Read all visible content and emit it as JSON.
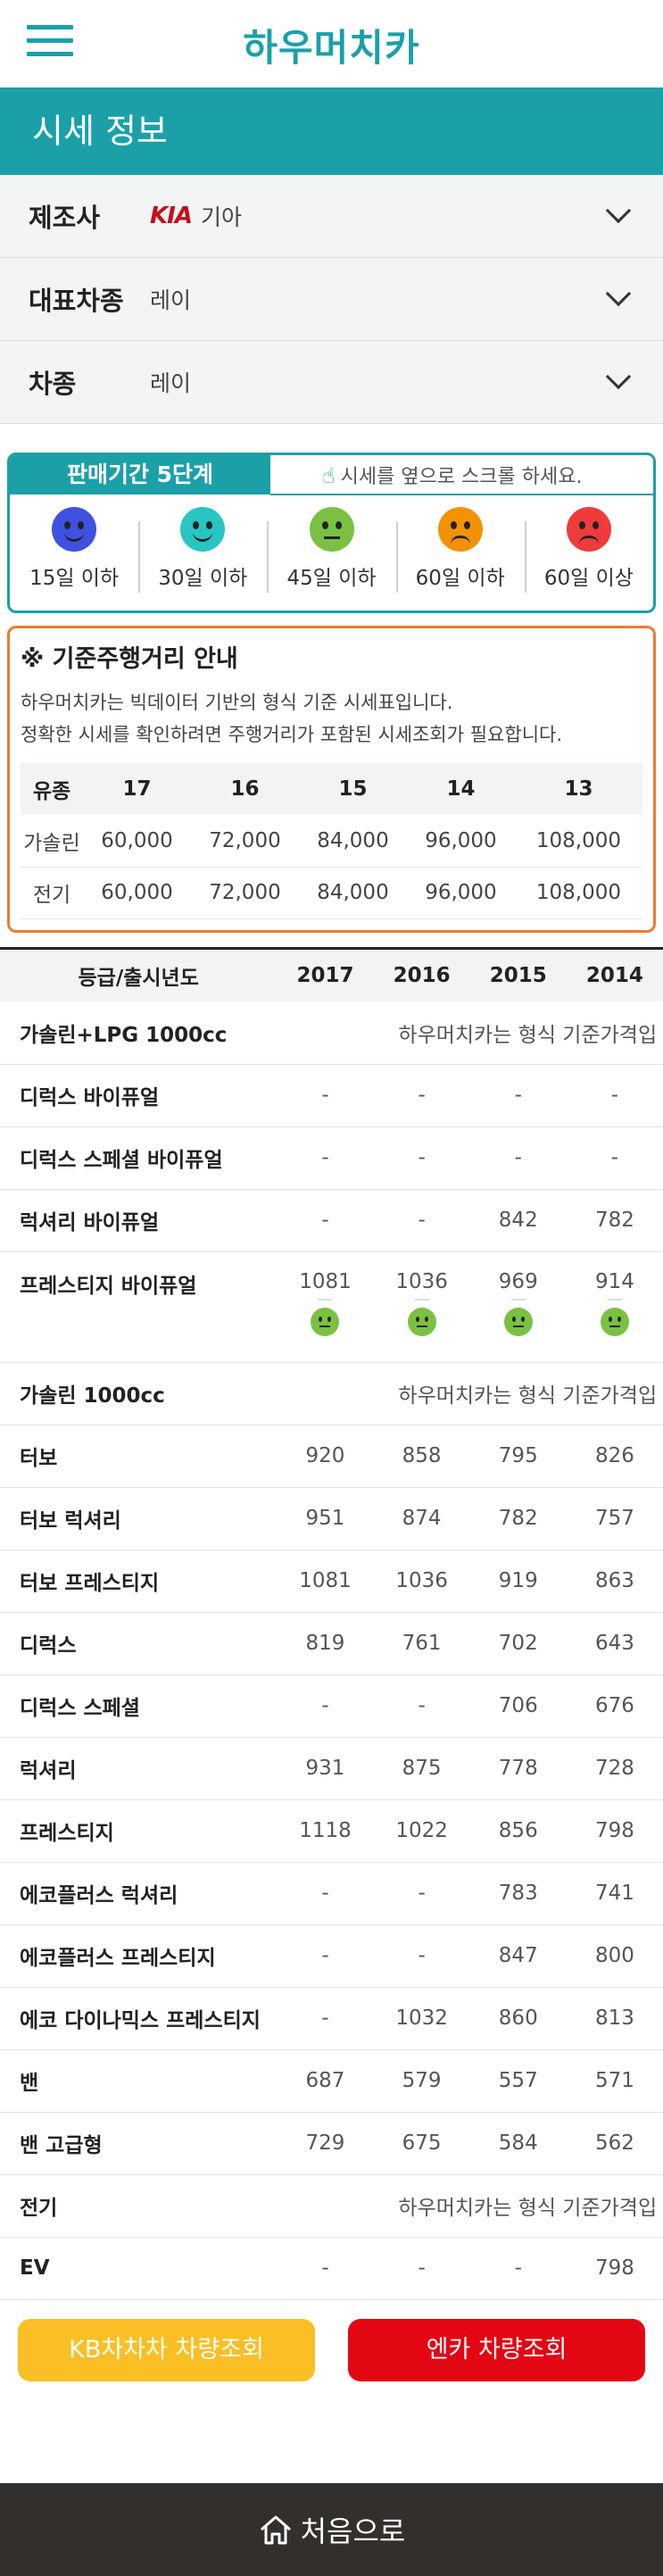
{
  "header": {
    "logo": "하우머치카"
  },
  "title": "시세 정보",
  "selectors": [
    {
      "label": "제조사",
      "value": "기아",
      "brand_logo": "KIA"
    },
    {
      "label": "대표차종",
      "value": "레이"
    },
    {
      "label": "차종",
      "value": "레이"
    }
  ],
  "period": {
    "tab_label": "판매기간 5단계",
    "hint": "시세를 옆으로 스크롤 하세요.",
    "levels": [
      {
        "label": "15일 이하",
        "color": "#3f51e0",
        "icon": "very-happy-face-icon"
      },
      {
        "label": "30일 이하",
        "color": "#27c6c2",
        "icon": "happy-face-icon"
      },
      {
        "label": "45일 이하",
        "color": "#7ac142",
        "icon": "neutral-face-icon"
      },
      {
        "label": "60일 이하",
        "color": "#f39200",
        "icon": "sad-face-icon"
      },
      {
        "label": "60일 이상",
        "color": "#ef3b3b",
        "icon": "angry-face-icon"
      }
    ]
  },
  "notice": {
    "title": "※ 기준주행거리 안내",
    "line1": "하우머치카는 빅데이터 기반의 형식 기준 시세표입니다.",
    "line2": "정확한 시세를 확인하려면 주행거리가 포함된 시세조회가 필요합니다.",
    "headers": [
      "유종",
      "17",
      "16",
      "15",
      "14",
      "13"
    ],
    "rows": [
      [
        "가솔린",
        "60,000",
        "72,000",
        "84,000",
        "96,000",
        "108,000"
      ],
      [
        "전기",
        "60,000",
        "72,000",
        "84,000",
        "96,000",
        "108,000"
      ]
    ]
  },
  "price_table": {
    "headers": [
      "등급/출시년도",
      "2017",
      "2016",
      "2015",
      "2014"
    ],
    "group_note": "하우머치카는 형식 기준가격입",
    "rows": [
      {
        "type": "group",
        "name": "가솔린+LPG 1000cc"
      },
      {
        "name": "디럭스 바이퓨얼",
        "values": [
          "-",
          "-",
          "-",
          "-"
        ]
      },
      {
        "name": "디럭스 스페셜 바이퓨얼",
        "values": [
          "-",
          "-",
          "-",
          "-"
        ]
      },
      {
        "name": "럭셔리 바이퓨얼",
        "values": [
          "-",
          "-",
          "842",
          "782"
        ]
      },
      {
        "name": "프레스티지 바이퓨얼",
        "values": [
          "1081",
          "1036",
          "969",
          "914"
        ],
        "faces": true
      },
      {
        "type": "group",
        "name": "가솔린 1000cc"
      },
      {
        "name": "터보",
        "values": [
          "920",
          "858",
          "795",
          "826"
        ]
      },
      {
        "name": "터보 럭셔리",
        "values": [
          "951",
          "874",
          "782",
          "757"
        ]
      },
      {
        "name": "터보 프레스티지",
        "values": [
          "1081",
          "1036",
          "919",
          "863"
        ]
      },
      {
        "name": "디럭스",
        "values": [
          "819",
          "761",
          "702",
          "643"
        ]
      },
      {
        "name": "디럭스 스페셜",
        "values": [
          "-",
          "-",
          "706",
          "676"
        ]
      },
      {
        "name": "럭셔리",
        "values": [
          "931",
          "875",
          "778",
          "728"
        ]
      },
      {
        "name": "프레스티지",
        "values": [
          "1118",
          "1022",
          "856",
          "798"
        ]
      },
      {
        "name": "에코플러스 럭셔리",
        "values": [
          "-",
          "-",
          "783",
          "741"
        ]
      },
      {
        "name": "에코플러스 프레스티지",
        "values": [
          "-",
          "-",
          "847",
          "800"
        ]
      },
      {
        "name": "에코 다이나믹스 프레스티지",
        "values": [
          "-",
          "1032",
          "860",
          "813"
        ]
      },
      {
        "name": "밴",
        "values": [
          "687",
          "579",
          "557",
          "571"
        ]
      },
      {
        "name": "밴 고급형",
        "values": [
          "729",
          "675",
          "584",
          "562"
        ]
      },
      {
        "type": "group",
        "name": "전기"
      },
      {
        "name": "EV",
        "values": [
          "-",
          "-",
          "-",
          "798"
        ]
      }
    ]
  },
  "buttons": {
    "kb": "KB차차차 차량조회",
    "encar": "엔카 차량조회"
  },
  "footer": {
    "home": "처음으로"
  }
}
